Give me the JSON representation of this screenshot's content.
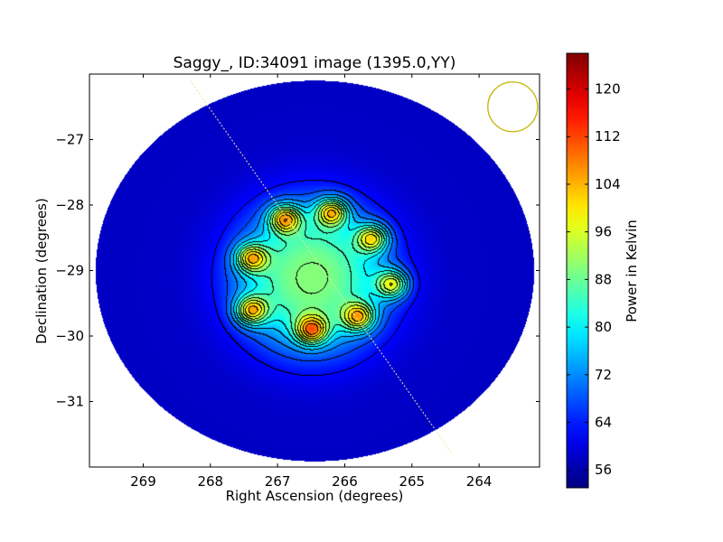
{
  "chart_data": {
    "type": "heatmap",
    "title": "Saggy_, ID:34091 image (1395.0,YY)",
    "xlabel": "Right Ascension (degrees)",
    "ylabel": "Declination (degrees)",
    "xlim": [
      269.8,
      263.1
    ],
    "ylim": [
      -32.0,
      -26.0
    ],
    "x_axis_inverted": true,
    "x_ticks": [
      269,
      268,
      267,
      266,
      265,
      264
    ],
    "y_ticks": [
      -27,
      -28,
      -29,
      -30,
      -31
    ],
    "x_tick_labels": [
      "269",
      "268",
      "267",
      "266",
      "265",
      "264"
    ],
    "y_tick_labels": [
      "−27",
      "−28",
      "−29",
      "−30",
      "−31"
    ],
    "colorbar": {
      "label": "Power in Kelvin",
      "range": [
        53,
        126
      ],
      "ticks": [
        56,
        64,
        72,
        80,
        88,
        96,
        104,
        112,
        120
      ],
      "tick_labels": [
        "56",
        "64",
        "72",
        "80",
        "88",
        "96",
        "104",
        "112",
        "120"
      ],
      "colormap": "jet"
    },
    "background_level": 58,
    "central_plateau": {
      "ra": 266.5,
      "dec": -29.1,
      "value": 90
    },
    "peaks": [
      {
        "ra": 266.9,
        "dec": -28.2,
        "value": 123
      },
      {
        "ra": 266.2,
        "dec": -28.1,
        "value": 122
      },
      {
        "ra": 265.6,
        "dec": -28.5,
        "value": 120
      },
      {
        "ra": 267.4,
        "dec": -28.8,
        "value": 120
      },
      {
        "ra": 265.3,
        "dec": -29.2,
        "value": 120
      },
      {
        "ra": 267.4,
        "dec": -29.6,
        "value": 122
      },
      {
        "ra": 266.5,
        "dec": -29.9,
        "value": 122
      },
      {
        "ra": 265.8,
        "dec": -29.7,
        "value": 120
      }
    ],
    "overlays": {
      "beam_circle": {
        "ra": 263.5,
        "dec": -26.5,
        "radius_deg": 0.37,
        "color": "#c8b400"
      },
      "dashed_line": {
        "from": [
          268.3,
          -26.1
        ],
        "to": [
          264.4,
          -31.8
        ],
        "color": "#e8e8a0"
      }
    },
    "contours": true,
    "grid": false,
    "colors": {
      "contour": "#000000"
    }
  }
}
